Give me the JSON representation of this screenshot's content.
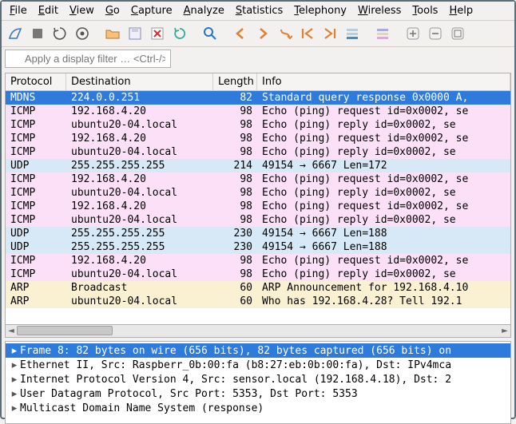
{
  "menu": [
    "File",
    "Edit",
    "View",
    "Go",
    "Capture",
    "Analyze",
    "Statistics",
    "Telephony",
    "Wireless",
    "Tools",
    "Help"
  ],
  "filter_placeholder": "Apply a display filter … <Ctrl-/>",
  "columns": {
    "protocol": "Protocol",
    "destination": "Destination",
    "length": "Length",
    "info": "Info"
  },
  "row_colors": {
    "selected": {
      "bg": "#2f7bdc",
      "fg": "#ffffff"
    },
    "icmp": {
      "bg": "#fbe0f8",
      "fg": "#000000"
    },
    "udp": {
      "bg": "#d7e8f7",
      "fg": "#000000"
    },
    "arp": {
      "bg": "#faf0d2",
      "fg": "#000000"
    }
  },
  "packets": [
    {
      "style": "selected",
      "proto": "MDNS",
      "dest": "224.0.0.251",
      "len": 82,
      "info": "Standard query response 0x0000 A,"
    },
    {
      "style": "icmp",
      "proto": "ICMP",
      "dest": "192.168.4.20",
      "len": 98,
      "info": "Echo (ping) request  id=0x0002, se"
    },
    {
      "style": "icmp",
      "proto": "ICMP",
      "dest": "ubuntu20-04.local",
      "len": 98,
      "info": "Echo (ping) reply    id=0x0002, se"
    },
    {
      "style": "icmp",
      "proto": "ICMP",
      "dest": "192.168.4.20",
      "len": 98,
      "info": "Echo (ping) request  id=0x0002, se"
    },
    {
      "style": "icmp",
      "proto": "ICMP",
      "dest": "ubuntu20-04.local",
      "len": 98,
      "info": "Echo (ping) reply    id=0x0002, se"
    },
    {
      "style": "udp",
      "proto": "UDP",
      "dest": "255.255.255.255",
      "len": 214,
      "info": "49154 → 6667 Len=172"
    },
    {
      "style": "icmp",
      "proto": "ICMP",
      "dest": "192.168.4.20",
      "len": 98,
      "info": "Echo (ping) request  id=0x0002, se"
    },
    {
      "style": "icmp",
      "proto": "ICMP",
      "dest": "ubuntu20-04.local",
      "len": 98,
      "info": "Echo (ping) reply    id=0x0002, se"
    },
    {
      "style": "icmp",
      "proto": "ICMP",
      "dest": "192.168.4.20",
      "len": 98,
      "info": "Echo (ping) request  id=0x0002, se"
    },
    {
      "style": "icmp",
      "proto": "ICMP",
      "dest": "ubuntu20-04.local",
      "len": 98,
      "info": "Echo (ping) reply    id=0x0002, se"
    },
    {
      "style": "udp",
      "proto": "UDP",
      "dest": "255.255.255.255",
      "len": 230,
      "info": "49154 → 6667 Len=188"
    },
    {
      "style": "udp",
      "proto": "UDP",
      "dest": "255.255.255.255",
      "len": 230,
      "info": "49154 → 6667 Len=188"
    },
    {
      "style": "icmp",
      "proto": "ICMP",
      "dest": "192.168.4.20",
      "len": 98,
      "info": "Echo (ping) request  id=0x0002, se"
    },
    {
      "style": "icmp",
      "proto": "ICMP",
      "dest": "ubuntu20-04.local",
      "len": 98,
      "info": "Echo (ping) reply    id=0x0002, se"
    },
    {
      "style": "arp",
      "proto": "ARP",
      "dest": "Broadcast",
      "len": 60,
      "info": "ARP Announcement for 192.168.4.10"
    },
    {
      "style": "arp",
      "proto": "ARP",
      "dest": "ubuntu20-04.local",
      "len": 60,
      "info": "Who has 192.168.4.28? Tell 192.1"
    }
  ],
  "details": [
    {
      "expand": "▸",
      "sel": true,
      "text": "Frame 8: 82 bytes on wire (656 bits), 82 bytes captured (656 bits) on"
    },
    {
      "expand": "▸",
      "sel": false,
      "text": "Ethernet II, Src: Raspberr_0b:00:fa (b8:27:eb:0b:00:fa), Dst: IPv4mca"
    },
    {
      "expand": "▸",
      "sel": false,
      "text": "Internet Protocol Version 4, Src: sensor.local (192.168.4.18), Dst: 2"
    },
    {
      "expand": "▸",
      "sel": false,
      "text": "User Datagram Protocol, Src Port: 5353, Dst Port: 5353"
    },
    {
      "expand": "▸",
      "sel": false,
      "text": "Multicast Domain Name System (response)"
    }
  ],
  "toolbar_colors": {
    "fin": "#3a76c4",
    "stop": "#d44",
    "restart": "#2a9",
    "folder": "#e08030",
    "nav": "#e08030",
    "zoom": "#2277cc",
    "plus": "#777",
    "minus": "#777"
  }
}
